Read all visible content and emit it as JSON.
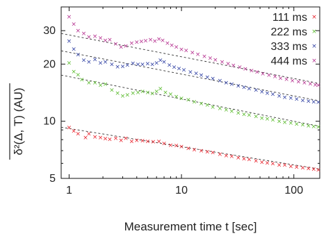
{
  "chart_data": {
    "type": "scatter",
    "title": "",
    "xlabel": "Measurement time t [sec]",
    "ylabel": "δ²(Δ, T) (AU)",
    "xscale": "log",
    "yscale": "log",
    "xlim": [
      0.85,
      170
    ],
    "ylim": [
      5,
      40
    ],
    "x_ticks": [
      1,
      10,
      100
    ],
    "y_ticks": [
      5,
      10,
      20,
      30
    ],
    "grid": false,
    "legend_position": "top-right",
    "marker": "×",
    "series": [
      {
        "name": "111 ms",
        "color": "#e8202a",
        "fit": {
          "x": [
            0.85,
            170
          ],
          "y": [
            9.3,
            5.6
          ]
        },
        "points": [
          [
            1.0,
            9.3
          ],
          [
            1.1,
            8.9
          ],
          [
            1.2,
            8.6
          ],
          [
            1.4,
            8.2
          ],
          [
            1.5,
            8.6
          ],
          [
            1.7,
            8.3
          ],
          [
            1.9,
            8.2
          ],
          [
            2.1,
            8.1
          ],
          [
            2.3,
            8.05
          ],
          [
            2.6,
            8.15
          ],
          [
            2.9,
            7.95
          ],
          [
            3.2,
            8.15
          ],
          [
            3.6,
            7.85
          ],
          [
            4.0,
            7.95
          ],
          [
            4.5,
            7.9
          ],
          [
            5.0,
            7.85
          ],
          [
            5.6,
            7.8
          ],
          [
            6.3,
            7.85
          ],
          [
            7.0,
            7.65
          ],
          [
            8.0,
            7.5
          ],
          [
            9.0,
            7.45
          ],
          [
            10,
            7.35
          ],
          [
            11.5,
            7.2
          ],
          [
            13,
            7.1
          ],
          [
            15,
            7.0
          ],
          [
            17,
            6.9
          ],
          [
            19,
            6.85
          ],
          [
            22,
            6.7
          ],
          [
            25,
            6.6
          ],
          [
            28,
            6.55
          ],
          [
            32,
            6.45
          ],
          [
            36,
            6.35
          ],
          [
            40,
            6.3
          ],
          [
            46,
            6.2
          ],
          [
            52,
            6.1
          ],
          [
            58,
            6.05
          ],
          [
            65,
            6.0
          ],
          [
            74,
            5.9
          ],
          [
            83,
            5.9
          ],
          [
            94,
            5.8
          ],
          [
            106,
            5.75
          ],
          [
            120,
            5.7
          ],
          [
            135,
            5.65
          ],
          [
            150,
            5.6
          ],
          [
            165,
            5.55
          ]
        ]
      },
      {
        "name": "222 ms",
        "color": "#5bbb2e",
        "fit": {
          "x": [
            0.85,
            170
          ],
          "y": [
            17.5,
            9.4
          ]
        },
        "points": [
          [
            1.0,
            20.3
          ],
          [
            1.1,
            18.3
          ],
          [
            1.2,
            17.6
          ],
          [
            1.3,
            16.6
          ],
          [
            1.5,
            16.0
          ],
          [
            1.7,
            16.0
          ],
          [
            1.9,
            15.5
          ],
          [
            2.1,
            15.7
          ],
          [
            2.4,
            14.6
          ],
          [
            2.7,
            14.1
          ],
          [
            3.0,
            13.6
          ],
          [
            3.3,
            13.8
          ],
          [
            3.7,
            14.1
          ],
          [
            4.1,
            14.2
          ],
          [
            4.5,
            14.4
          ],
          [
            5.0,
            14.2
          ],
          [
            5.5,
            14.0
          ],
          [
            6.0,
            14.4
          ],
          [
            6.5,
            14.9
          ],
          [
            7.2,
            14.2
          ],
          [
            8.0,
            13.9
          ],
          [
            9.0,
            13.5
          ],
          [
            10,
            13.2
          ],
          [
            11.5,
            13.0
          ],
          [
            13,
            12.7
          ],
          [
            15,
            12.4
          ],
          [
            17,
            12.2
          ],
          [
            19,
            11.9
          ],
          [
            22,
            11.7
          ],
          [
            25,
            11.5
          ],
          [
            28,
            11.3
          ],
          [
            32,
            11.1
          ],
          [
            36,
            10.9
          ],
          [
            40,
            10.8
          ],
          [
            46,
            10.6
          ],
          [
            52,
            10.4
          ],
          [
            58,
            10.3
          ],
          [
            65,
            10.2
          ],
          [
            74,
            10.0
          ],
          [
            83,
            9.9
          ],
          [
            94,
            9.8
          ],
          [
            106,
            9.7
          ],
          [
            120,
            9.6
          ],
          [
            135,
            9.5
          ],
          [
            150,
            9.4
          ],
          [
            165,
            9.35
          ]
        ]
      },
      {
        "name": "333 ms",
        "color": "#2e3fa3",
        "fit": {
          "x": [
            0.85,
            170
          ],
          "y": [
            23.5,
            12.8
          ]
        },
        "points": [
          [
            1.0,
            26.5
          ],
          [
            1.1,
            24.0
          ],
          [
            1.2,
            22.5
          ],
          [
            1.35,
            21.0
          ],
          [
            1.5,
            20.6
          ],
          [
            1.7,
            21.2
          ],
          [
            1.9,
            20.3
          ],
          [
            2.1,
            20.6
          ],
          [
            2.4,
            20.0
          ],
          [
            2.7,
            19.4
          ],
          [
            3.0,
            19.5
          ],
          [
            3.3,
            19.8
          ],
          [
            3.7,
            20.2
          ],
          [
            4.1,
            20.0
          ],
          [
            4.5,
            20.0
          ],
          [
            5.0,
            20.1
          ],
          [
            5.5,
            20.0
          ],
          [
            6.0,
            20.3
          ],
          [
            6.5,
            21.0
          ],
          [
            7.0,
            20.6
          ],
          [
            7.8,
            19.8
          ],
          [
            8.6,
            19.3
          ],
          [
            9.5,
            19.0
          ],
          [
            10.5,
            18.7
          ],
          [
            12,
            18.2
          ],
          [
            13.5,
            17.9
          ],
          [
            15,
            17.5
          ],
          [
            17,
            17.1
          ],
          [
            19,
            16.8
          ],
          [
            22,
            16.4
          ],
          [
            25,
            16.0
          ],
          [
            28,
            15.7
          ],
          [
            32,
            15.4
          ],
          [
            36,
            15.1
          ],
          [
            40,
            14.9
          ],
          [
            46,
            14.6
          ],
          [
            52,
            14.3
          ],
          [
            58,
            14.1
          ],
          [
            65,
            13.9
          ],
          [
            74,
            13.6
          ],
          [
            83,
            13.4
          ],
          [
            94,
            13.3
          ],
          [
            106,
            13.1
          ],
          [
            120,
            12.9
          ],
          [
            135,
            12.8
          ],
          [
            150,
            12.7
          ],
          [
            165,
            12.6
          ]
        ]
      },
      {
        "name": "444 ms",
        "color": "#b5308f",
        "fit": {
          "x": [
            0.85,
            170
          ],
          "y": [
            29.0,
            15.8
          ]
        },
        "points": [
          [
            1.0,
            35.5
          ],
          [
            1.1,
            32.5
          ],
          [
            1.2,
            30.0
          ],
          [
            1.35,
            29.0
          ],
          [
            1.5,
            27.8
          ],
          [
            1.7,
            28.1
          ],
          [
            1.9,
            27.5
          ],
          [
            2.1,
            26.7
          ],
          [
            2.3,
            26.9
          ],
          [
            2.6,
            25.6
          ],
          [
            2.9,
            24.7
          ],
          [
            3.2,
            25.0
          ],
          [
            3.6,
            25.8
          ],
          [
            4.0,
            26.2
          ],
          [
            4.4,
            26.4
          ],
          [
            4.8,
            26.6
          ],
          [
            5.3,
            26.9
          ],
          [
            5.8,
            26.5
          ],
          [
            6.3,
            27.2
          ],
          [
            6.8,
            26.7
          ],
          [
            7.5,
            25.8
          ],
          [
            8.2,
            25.2
          ],
          [
            9.0,
            24.6
          ],
          [
            10,
            23.9
          ],
          [
            11,
            23.6
          ],
          [
            12.5,
            23.0
          ],
          [
            14,
            22.6
          ],
          [
            16,
            22.0
          ],
          [
            18,
            21.5
          ],
          [
            20,
            21.1
          ],
          [
            23,
            20.6
          ],
          [
            26,
            20.1
          ],
          [
            29,
            19.7
          ],
          [
            33,
            19.3
          ],
          [
            37,
            18.9
          ],
          [
            42,
            18.5
          ],
          [
            47,
            18.2
          ],
          [
            53,
            17.8
          ],
          [
            60,
            17.5
          ],
          [
            68,
            17.2
          ],
          [
            76,
            16.9
          ],
          [
            86,
            16.7
          ],
          [
            97,
            16.4
          ],
          [
            110,
            16.2
          ],
          [
            124,
            16.0
          ],
          [
            140,
            15.8
          ],
          [
            155,
            15.6
          ],
          [
            165,
            15.5
          ]
        ]
      }
    ]
  }
}
